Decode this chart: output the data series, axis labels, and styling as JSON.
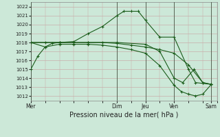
{
  "xlabel": "Pression niveau de la mer( hPa )",
  "bg_color": "#cce8d8",
  "grid_color": "#b0c8b8",
  "line_color": "#1a5c1a",
  "ylim": [
    1011.5,
    1022.5
  ],
  "yticks": [
    1012,
    1013,
    1014,
    1015,
    1016,
    1017,
    1018,
    1019,
    1020,
    1021,
    1022
  ],
  "day_labels": [
    "Mer",
    "",
    "Dim",
    "Jeu",
    "Ven",
    "",
    "Sam"
  ],
  "day_positions": [
    0,
    1.5,
    3,
    4,
    5,
    5.5,
    6.3
  ],
  "xlim": [
    0,
    6.5
  ],
  "series1_x": [
    0,
    0.25,
    0.5,
    0.75,
    1.0,
    1.5,
    2.0,
    2.5,
    3.0,
    3.25,
    3.5,
    3.75,
    4.0,
    4.5,
    5.0,
    5.5,
    5.75,
    6.3
  ],
  "series1_y": [
    1015.0,
    1016.5,
    1017.5,
    1017.9,
    1018.0,
    1018.1,
    1019.0,
    1019.8,
    1021.0,
    1021.5,
    1021.5,
    1021.5,
    1020.5,
    1018.6,
    1018.6,
    1015.0,
    1013.5,
    1013.3
  ],
  "series2_x": [
    0,
    0.5,
    1.0,
    1.5,
    2.0,
    2.5,
    3.0,
    3.5,
    4.0,
    4.5,
    5.0,
    5.5,
    6.0,
    6.3
  ],
  "series2_y": [
    1018.0,
    1018.0,
    1018.0,
    1018.0,
    1018.0,
    1018.0,
    1017.9,
    1017.7,
    1017.5,
    1017.2,
    1016.8,
    1015.5,
    1013.5,
    1013.3
  ],
  "series3_x": [
    0,
    1.0,
    2.0,
    3.0,
    4.0,
    4.5,
    5.0,
    5.3,
    5.7,
    6.0,
    6.3
  ],
  "series3_y": [
    1018.0,
    1018.0,
    1018.0,
    1018.0,
    1017.8,
    1017.0,
    1014.0,
    1013.5,
    1015.0,
    1013.5,
    1013.3
  ],
  "series4_x": [
    0,
    0.5,
    1.0,
    1.5,
    2.0,
    2.5,
    3.0,
    3.5,
    4.0,
    4.5,
    5.0,
    5.25,
    5.5,
    5.75,
    6.0,
    6.3
  ],
  "series4_y": [
    1018.0,
    1017.5,
    1017.8,
    1017.8,
    1017.8,
    1017.7,
    1017.5,
    1017.2,
    1016.8,
    1015.4,
    1013.2,
    1012.5,
    1012.2,
    1012.0,
    1012.2,
    1013.3
  ],
  "vline_x": [
    0,
    3,
    4,
    5,
    6.3
  ],
  "xlabel_fontsize": 7,
  "ytick_fontsize": 5,
  "xtick_fontsize": 5.5
}
